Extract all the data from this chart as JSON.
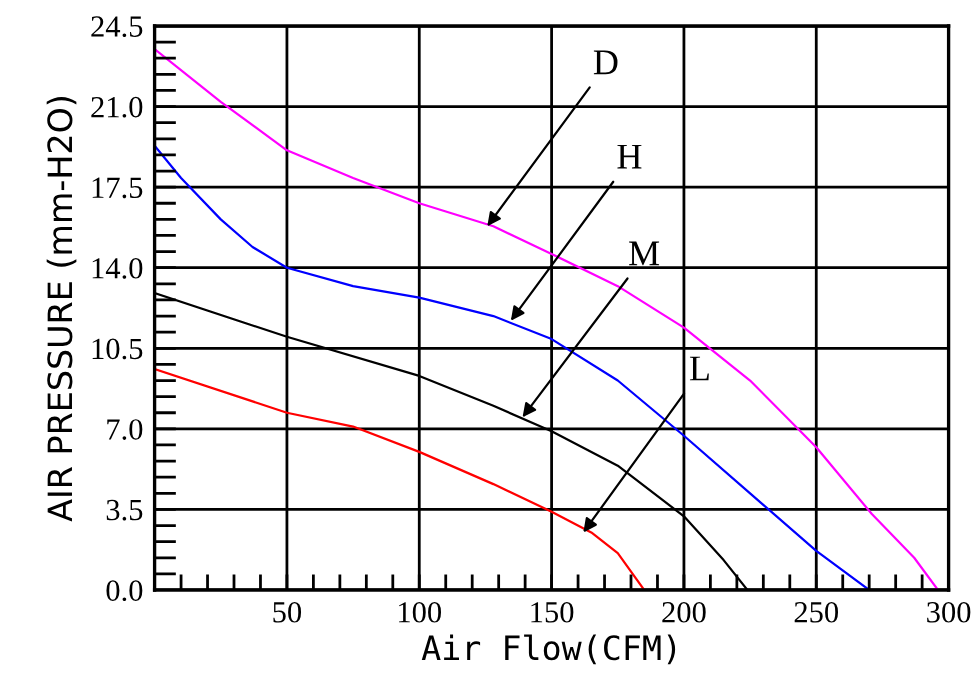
{
  "chart_data": {
    "type": "line",
    "xlabel": "Air Flow(CFM)",
    "ylabel": "AIR PRESSURE (mm-H2O)",
    "xlim": [
      0,
      300
    ],
    "xticks": [
      50,
      100,
      150,
      200,
      250,
      300
    ],
    "ylim": [
      0,
      24.5
    ],
    "yticks": [
      {
        "value": 0,
        "label": "0.0"
      },
      3.5,
      {
        "value": 7,
        "label": "7.0"
      },
      10.5,
      {
        "value": 14,
        "label": "14.0"
      },
      17.5,
      {
        "value": 21,
        "label": "21.0"
      },
      24.5
    ],
    "grid": true,
    "marker": "none",
    "line_style": "solid",
    "series": [
      {
        "color": "#ff00ff",
        "x": [
          0,
          25,
          50,
          75,
          100,
          128,
          150,
          175,
          200,
          225,
          250,
          271,
          287,
          296
        ],
        "values": [
          23.5,
          21.2,
          19.1,
          17.9,
          16.8,
          15.8,
          14.6,
          13.2,
          11.4,
          9.1,
          6.2,
          3.3,
          1.4,
          0
        ]
      },
      {
        "color": "#0000ff",
        "x": [
          0,
          10,
          25,
          37,
          50,
          75,
          100,
          128,
          150,
          175,
          200,
          225,
          250,
          270
        ],
        "values": [
          19.3,
          17.9,
          16.1,
          14.9,
          14.0,
          13.2,
          12.7,
          11.9,
          10.9,
          9.1,
          6.7,
          4.2,
          1.7,
          0
        ]
      },
      {
        "color": "#000000",
        "x": [
          0,
          50,
          100,
          128,
          150,
          175,
          200,
          215,
          224
        ],
        "values": [
          12.9,
          11.0,
          9.3,
          8.0,
          6.9,
          5.4,
          3.2,
          1.3,
          0
        ]
      },
      {
        "color": "#ff0000",
        "x": [
          0,
          50,
          75,
          100,
          128,
          150,
          165,
          175,
          185
        ],
        "values": [
          9.6,
          7.7,
          7.1,
          6.0,
          4.6,
          3.4,
          2.5,
          1.6,
          0
        ]
      }
    ],
    "annotations": [
      {
        "text": "D",
        "x": 125.7,
        "y": 15.8
      },
      {
        "text": "H",
        "x": 134.6,
        "y": 11.7
      },
      {
        "text": "M",
        "x": 139,
        "y": 7.5
      },
      {
        "text": "L",
        "x": 162,
        "y": 2.5
      }
    ]
  }
}
